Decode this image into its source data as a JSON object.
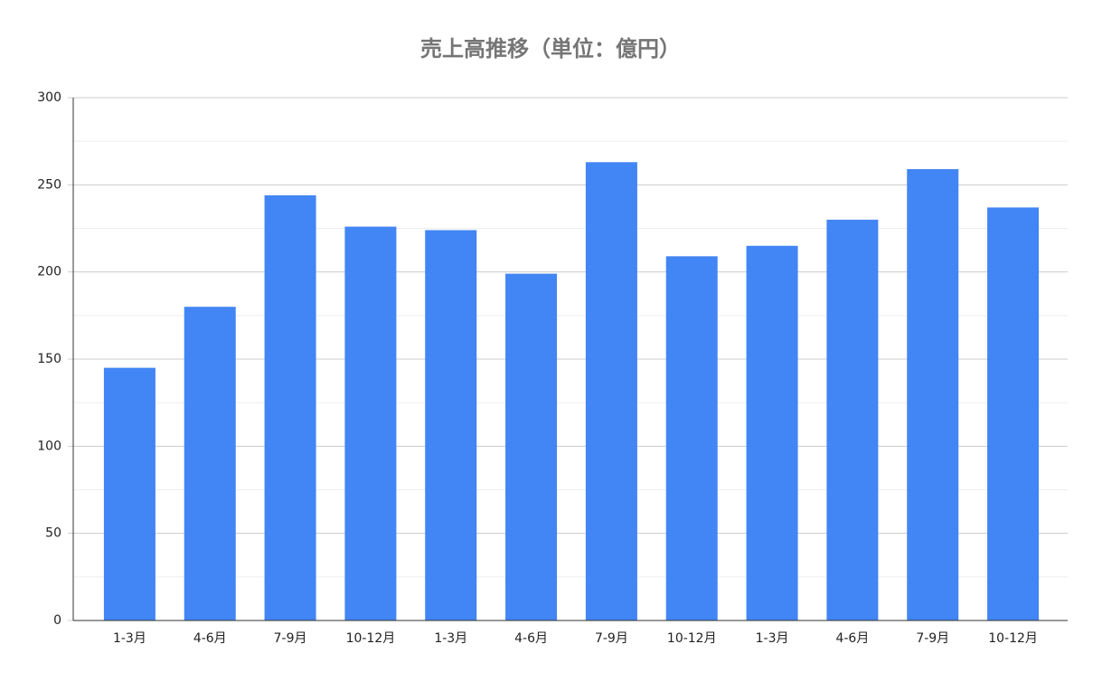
{
  "chart_data": {
    "type": "bar",
    "title": "売上高推移（単位：億円）",
    "categories": [
      "1-3月",
      "4-6月",
      "7-9月",
      "10-12月",
      "1-3月",
      "4-6月",
      "7-9月",
      "10-12月",
      "1-3月",
      "4-6月",
      "7-9月",
      "10-12月"
    ],
    "values": [
      145,
      180,
      244,
      226,
      224,
      199,
      263,
      209,
      215,
      230,
      259,
      237
    ],
    "color": "#4285f4",
    "ylim": [
      0,
      300
    ],
    "yticks": [
      0,
      50,
      100,
      150,
      200,
      250,
      300
    ],
    "minor_yticks": [
      25,
      75,
      125,
      175,
      225,
      275
    ],
    "grid": true
  }
}
